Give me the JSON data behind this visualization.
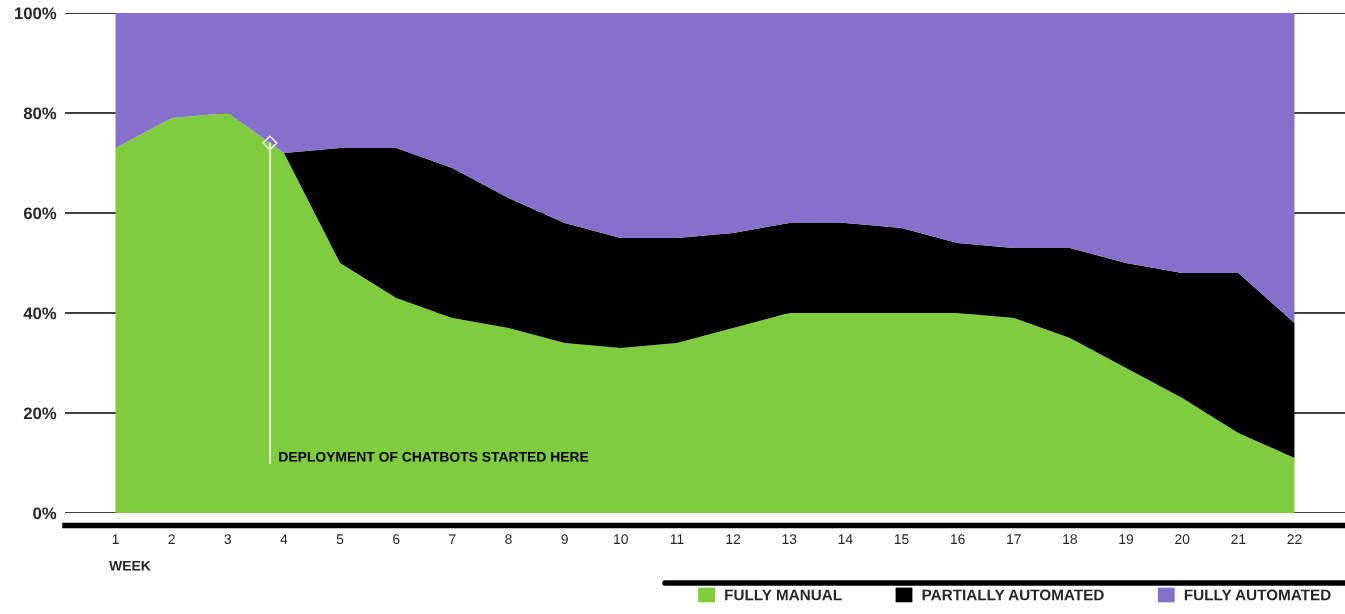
{
  "chart_data": {
    "type": "area",
    "stacked": true,
    "x": [
      1,
      2,
      3,
      4,
      5,
      6,
      7,
      8,
      9,
      10,
      11,
      12,
      13,
      14,
      15,
      16,
      17,
      18,
      19,
      20,
      21,
      22
    ],
    "series": [
      {
        "name": "FULLY MANUAL",
        "color": "#7fcc3f",
        "values": [
          73,
          79,
          80,
          72,
          50,
          43,
          39,
          37,
          34,
          33,
          34,
          37,
          40,
          40,
          40,
          40,
          39,
          35,
          29,
          23,
          16,
          11
        ]
      },
      {
        "name": "PARTIALLY AUTOMATED",
        "color": "#000000",
        "values": [
          0,
          0,
          0,
          0,
          23,
          30,
          30,
          26,
          24,
          22,
          21,
          19,
          18,
          18,
          17,
          14,
          14,
          18,
          21,
          25,
          32,
          27
        ]
      },
      {
        "name": "FULLY AUTOMATED",
        "color": "#8770cb",
        "values": [
          27,
          21,
          20,
          28,
          27,
          27,
          31,
          37,
          42,
          45,
          45,
          44,
          42,
          42,
          43,
          46,
          47,
          47,
          50,
          52,
          52,
          62
        ]
      }
    ],
    "xlabel": "WEEK",
    "xlim": [
      0.1,
      22.9
    ],
    "xticks": [
      1,
      2,
      3,
      4,
      5,
      6,
      7,
      8,
      9,
      10,
      11,
      12,
      13,
      14,
      15,
      16,
      17,
      18,
      19,
      20,
      21,
      22
    ],
    "ylim": [
      0,
      100
    ],
    "yticks": [
      {
        "value": 0,
        "label": "0%"
      },
      {
        "value": 20,
        "label": "20%"
      },
      {
        "value": 40,
        "label": "40%"
      },
      {
        "value": 60,
        "label": "60%"
      },
      {
        "value": 80,
        "label": "80%"
      },
      {
        "value": 100,
        "label": "100%"
      }
    ],
    "grid": "y",
    "legend": "bottom right",
    "annotations": [
      {
        "text": "DEPLOYMENT OF CHATBOTS STARTED HERE",
        "x": 3.75,
        "y": 74
      }
    ]
  }
}
